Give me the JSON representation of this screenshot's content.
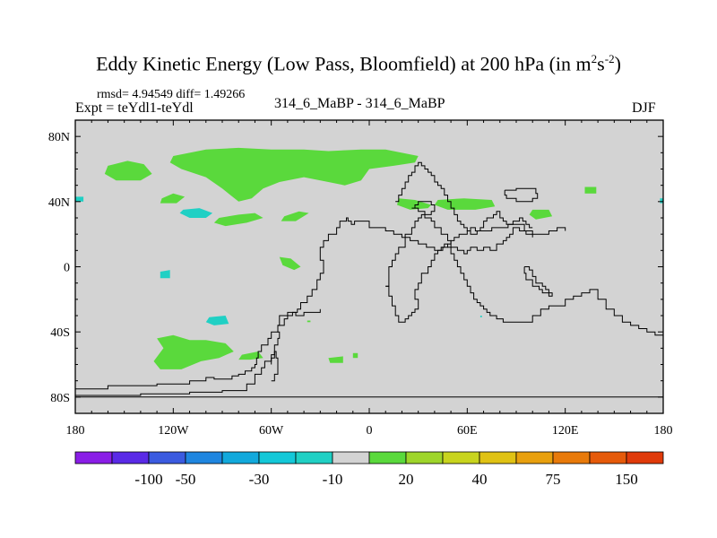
{
  "title": {
    "main": "Eddy Kinetic Energy (Low Pass, Bloomfield) at 200 hPa (in m",
    "sup1": "2",
    "mid": "s",
    "sup2": "-2",
    "close": ")"
  },
  "stats": "rmsd= 4.94549 diff= 1.49266",
  "experiment": "Expt = teYdl1-teYdl",
  "subtitle": "314_6_MaBP - 314_6_MaBP",
  "season": "DJF",
  "colors": {
    "background_land": "#d3d3d3",
    "positive_20": "#5ad93c",
    "negative_10": "#20d0c4",
    "coastline": "#000000"
  },
  "chart_data": {
    "type": "heatmap",
    "projection": "cylindrical equidistant",
    "field": "Eddy Kinetic Energy difference",
    "units": "m2 s-2",
    "pressure_level": "200 hPa",
    "xlim": [
      -180,
      180
    ],
    "ylim": [
      -90,
      90
    ],
    "x_ticks": [
      {
        "value": -180,
        "label": "180"
      },
      {
        "value": -120,
        "label": "120W"
      },
      {
        "value": -60,
        "label": "60W"
      },
      {
        "value": 0,
        "label": "0"
      },
      {
        "value": 60,
        "label": "60E"
      },
      {
        "value": 120,
        "label": "120E"
      },
      {
        "value": 180,
        "label": "180"
      }
    ],
    "y_ticks": [
      {
        "value": 80,
        "label": "80N"
      },
      {
        "value": 40,
        "label": "40N"
      },
      {
        "value": 0,
        "label": "0"
      },
      {
        "value": -40,
        "label": "40S"
      },
      {
        "value": -80,
        "label": "80S"
      }
    ],
    "colorbar": {
      "colors": [
        "#8a1ee6",
        "#5a2ae6",
        "#3b5be0",
        "#1f86e0",
        "#12a9dc",
        "#14c8d8",
        "#20d0c4",
        "#d3d3d3",
        "#5ad93c",
        "#9ed52a",
        "#c8d41e",
        "#e0c214",
        "#e8a00e",
        "#e87a0a",
        "#e55a0a",
        "#e03a0a"
      ],
      "labels": [
        {
          "boundary": 2,
          "text": "-100"
        },
        {
          "boundary": 3,
          "text": "-50"
        },
        {
          "boundary": 5,
          "text": "-30"
        },
        {
          "boundary": 7,
          "text": "-10"
        },
        {
          "boundary": 9,
          "text": "20"
        },
        {
          "boundary": 11,
          "text": "40"
        },
        {
          "boundary": 13,
          "text": "75"
        },
        {
          "boundary": 15,
          "text": "150"
        }
      ]
    },
    "regions": [
      {
        "category": "20",
        "lon": [
          -160,
          -148,
          -138,
          -133,
          -140,
          -155,
          -162
        ],
        "lat": [
          62,
          65,
          63,
          57,
          53,
          53,
          57
        ]
      },
      {
        "category": "20",
        "lon": [
          -120,
          -100,
          -80,
          -60,
          -40,
          -25,
          -5,
          10,
          30,
          28,
          15,
          0,
          -5,
          -15,
          -25,
          -40,
          -55,
          -65,
          -72,
          -80,
          -90,
          -100,
          -115,
          -122
        ],
        "lat": [
          68,
          72,
          73,
          72,
          72,
          71,
          72,
          72,
          68,
          64,
          62,
          60,
          53,
          50,
          52,
          55,
          52,
          48,
          42,
          40,
          48,
          55,
          60,
          64
        ]
      },
      {
        "category": "20",
        "lon": [
          -127,
          -120,
          -113,
          -118,
          -128
        ],
        "lat": [
          42,
          45,
          43,
          39,
          39
        ]
      },
      {
        "category": "20",
        "lon": [
          -92,
          -80,
          -70,
          -65,
          -75,
          -88,
          -95
        ],
        "lat": [
          30,
          32,
          33,
          30,
          27,
          25,
          27
        ]
      },
      {
        "category": "20",
        "lon": [
          -52,
          -43,
          -37,
          -45,
          -54
        ],
        "lat": [
          31,
          34,
          33,
          28,
          28
        ]
      },
      {
        "category": "20",
        "lon": [
          -55,
          -48,
          -42,
          -46,
          -53
        ],
        "lat": [
          6,
          5,
          0,
          -2,
          1
        ]
      },
      {
        "category": "20",
        "lon": [
          -130,
          -120,
          -110,
          -100,
          -88,
          -83,
          -92,
          -103,
          -115,
          -128,
          -132,
          -126
        ],
        "lat": [
          -44,
          -42,
          -45,
          -45,
          -47,
          -52,
          -56,
          -58,
          -63,
          -63,
          -58,
          -50
        ]
      },
      {
        "category": "20",
        "lon": [
          -78,
          -68,
          -65,
          -73,
          -80
        ],
        "lat": [
          -54,
          -52,
          -56,
          -57,
          -57
        ]
      },
      {
        "category": "20",
        "lon": [
          -25,
          -16,
          -16,
          -24
        ],
        "lat": [
          -56,
          -55,
          -59,
          -59
        ]
      },
      {
        "category": "20",
        "lon": [
          -10,
          -7,
          -7,
          -10
        ],
        "lat": [
          -53,
          -53,
          -56,
          -56
        ]
      },
      {
        "category": "20",
        "lon": [
          18,
          28,
          38,
          36,
          25,
          17
        ],
        "lat": [
          42,
          41,
          38,
          36,
          35,
          38
        ]
      },
      {
        "category": "20",
        "lon": [
          42,
          58,
          75,
          77,
          65,
          48,
          40
        ],
        "lat": [
          41,
          42,
          41,
          37,
          35,
          35,
          38
        ]
      },
      {
        "category": "20",
        "lon": [
          100,
          110,
          112,
          102,
          98
        ],
        "lat": [
          35,
          35,
          31,
          29,
          32
        ]
      },
      {
        "category": "20",
        "lon": [
          132,
          139,
          139,
          132
        ],
        "lat": [
          49,
          49,
          45,
          45
        ]
      },
      {
        "category": "-10",
        "lon": [
          -114,
          -104,
          -96,
          -100,
          -110,
          -116
        ],
        "lat": [
          35,
          36,
          33,
          30,
          30,
          33
        ]
      },
      {
        "category": "-10",
        "lon": [
          -180,
          -175,
          -175,
          -180
        ],
        "lat": [
          43,
          43,
          40,
          40
        ]
      },
      {
        "category": "-10",
        "lon": [
          178,
          180,
          180,
          178
        ],
        "lat": [
          42,
          42,
          39,
          39
        ]
      },
      {
        "category": "-10",
        "lon": [
          -128,
          -122,
          -122,
          -128
        ],
        "lat": [
          -3,
          -2,
          -7,
          -7
        ]
      },
      {
        "category": "-10",
        "lon": [
          -98,
          -88,
          -86,
          -95,
          -100
        ],
        "lat": [
          -31,
          -30,
          -35,
          -36,
          -34
        ]
      },
      {
        "category": "-10",
        "lon": [
          68,
          69,
          69,
          68
        ],
        "lat": [
          -30,
          -30,
          -31,
          -31
        ]
      },
      {
        "category": "20",
        "lon": [
          -38,
          -36,
          -36,
          -38
        ],
        "lat": [
          -33,
          -33,
          -34,
          -34
        ]
      }
    ],
    "outlines": [
      {
        "lon": [
          -180,
          -172,
          -160,
          -150,
          -140,
          -130,
          -120,
          -110,
          -100,
          -95,
          -90,
          -84,
          -80,
          -76,
          -72,
          -70,
          -69,
          -68,
          -66,
          -62,
          -60,
          -56,
          -52,
          -50,
          -47,
          -44,
          -42,
          -38,
          -35,
          -32,
          -30,
          -28,
          -28,
          -30,
          -30,
          -28,
          -25,
          -20,
          -18,
          -14,
          -13,
          -11,
          -9,
          -5,
          0,
          5,
          10,
          15,
          20,
          25,
          30,
          35,
          40,
          43,
          45,
          48,
          50,
          52,
          55,
          58,
          60,
          62,
          65,
          70,
          75,
          80,
          85,
          90,
          95,
          100,
          105,
          110,
          115,
          120
        ],
        "lat": [
          -75,
          -75,
          -73,
          -73,
          -73,
          -72,
          -72,
          -70,
          -68,
          -69,
          -69,
          -67,
          -66,
          -64,
          -62,
          -60,
          -56,
          -52,
          -48,
          -44,
          -40,
          -36,
          -32,
          -30,
          -28,
          -26,
          -22,
          -18,
          -14,
          -8,
          -4,
          0,
          4,
          8,
          12,
          16,
          20,
          24,
          28,
          30,
          28,
          26,
          28,
          28,
          24,
          24,
          22,
          20,
          18,
          16,
          14,
          12,
          10,
          10,
          12,
          14,
          16,
          18,
          20,
          20,
          22,
          24,
          22,
          22,
          24,
          24,
          26,
          26,
          22,
          20,
          20,
          22,
          24,
          22
        ]
      },
      {
        "lon": [
          -180,
          -170,
          -160,
          -150,
          -140,
          -130,
          -120,
          -110,
          -100,
          -90,
          -80,
          -75,
          -70,
          -66,
          -64,
          -60,
          -58,
          -56,
          -55,
          -56,
          -55,
          -50,
          -45,
          -40,
          -35,
          -30
        ],
        "lat": [
          -79,
          -79,
          -79,
          -79,
          -78,
          -78,
          -78,
          -77,
          -77,
          -76,
          -76,
          -72,
          -66,
          -62,
          -58,
          -54,
          -48,
          -44,
          -40,
          -36,
          -30,
          -28,
          -30,
          -28,
          -28,
          -26
        ]
      },
      {
        "lon": [
          -60,
          -58,
          -56,
          -56,
          -57,
          -58,
          -60
        ],
        "lat": [
          -70,
          -66,
          -62,
          -56,
          -52,
          -56,
          -60
        ]
      },
      {
        "lon": [
          -180,
          -170,
          -160,
          -140,
          -120,
          -100,
          -80,
          -60,
          -40,
          -20,
          0,
          20,
          40,
          60,
          80,
          100,
          120,
          140,
          160,
          180
        ],
        "lat": [
          -80,
          -80,
          -80,
          -80,
          -80,
          -80,
          -80,
          -80,
          -80,
          -80,
          -80,
          -80,
          -80,
          -80,
          -80,
          -80,
          -80,
          -80,
          -80,
          -80
        ]
      },
      {
        "lon": [
          10,
          12,
          14,
          16,
          18,
          20,
          22,
          24,
          26,
          28,
          30,
          30,
          28,
          30,
          32,
          36,
          38,
          40,
          42,
          44,
          46,
          48,
          50,
          52,
          54,
          56,
          58,
          60,
          62,
          64,
          66,
          68,
          70,
          72,
          74,
          76,
          78,
          80,
          82,
          84,
          86,
          88,
          90,
          92,
          95,
          98,
          100,
          105,
          110,
          115,
          118,
          120,
          125,
          130,
          135,
          140,
          145,
          150,
          155,
          160,
          165,
          170,
          175,
          180
        ],
        "lat": [
          -12,
          -18,
          -24,
          -30,
          -34,
          -34,
          -32,
          -30,
          -28,
          -26,
          -24,
          -20,
          -14,
          -10,
          -4,
          0,
          4,
          8,
          10,
          12,
          14,
          12,
          8,
          4,
          0,
          -4,
          -8,
          -12,
          -16,
          -20,
          -22,
          -24,
          -26,
          -28,
          -30,
          -30,
          -32,
          -32,
          -34,
          -34,
          -34,
          -34,
          -34,
          -34,
          -34,
          -34,
          -30,
          -26,
          -24,
          -24,
          -24,
          -20,
          -18,
          -16,
          -14,
          -20,
          -26,
          -30,
          -34,
          -36,
          -38,
          -40,
          -42,
          -44
        ]
      },
      {
        "lon": [
          10,
          12,
          12,
          14,
          16,
          18,
          22,
          26,
          28,
          30,
          32,
          34,
          38,
          40,
          44,
          48,
          50,
          54,
          58,
          60,
          62,
          66,
          70,
          74,
          78,
          82,
          84,
          86,
          88,
          92,
          96,
          100
        ],
        "lat": [
          -12,
          -8,
          0,
          4,
          8,
          12,
          20,
          24,
          28,
          30,
          32,
          30,
          28,
          24,
          20,
          16,
          12,
          10,
          8,
          10,
          12,
          10,
          12,
          10,
          14,
          16,
          18,
          20,
          24,
          22,
          20,
          18
        ]
      },
      {
        "lon": [
          16,
          18,
          20,
          22,
          24,
          26,
          28,
          30,
          32,
          34,
          36,
          38,
          40,
          42,
          44,
          46,
          48,
          50,
          52,
          54,
          56,
          58,
          60,
          62,
          64,
          66,
          68,
          70,
          72,
          74,
          76,
          78,
          80,
          82,
          84,
          86,
          88,
          90,
          92,
          94,
          96,
          98,
          100
        ],
        "lat": [
          40,
          44,
          48,
          52,
          56,
          58,
          62,
          64,
          62,
          60,
          58,
          56,
          52,
          50,
          48,
          44,
          40,
          36,
          32,
          28,
          26,
          24,
          22,
          20,
          20,
          22,
          24,
          28,
          30,
          30,
          32,
          34,
          30,
          28,
          26,
          26,
          28,
          28,
          30,
          28,
          26,
          24,
          24
        ]
      },
      {
        "lon": [
          26,
          28,
          30,
          34,
          38,
          40,
          38,
          34,
          30,
          28,
          26
        ],
        "lat": [
          36,
          38,
          40,
          40,
          38,
          34,
          32,
          34,
          36,
          36,
          36
        ]
      },
      {
        "lon": [
          83,
          90,
          95,
          100,
          102,
          103,
          100,
          95,
          90,
          86,
          84,
          83
        ],
        "lat": [
          47,
          48,
          48,
          48,
          45,
          42,
          40,
          40,
          42,
          42,
          44,
          47
        ]
      },
      {
        "lon": [
          95,
          98,
          100,
          102,
          104,
          106,
          108,
          110,
          112,
          110,
          106,
          104,
          100,
          96,
          95
        ],
        "lat": [
          0,
          -2,
          -6,
          -10,
          -10,
          -12,
          -14,
          -16,
          -18,
          -16,
          -14,
          -12,
          -8,
          -4,
          0
        ]
      }
    ]
  }
}
